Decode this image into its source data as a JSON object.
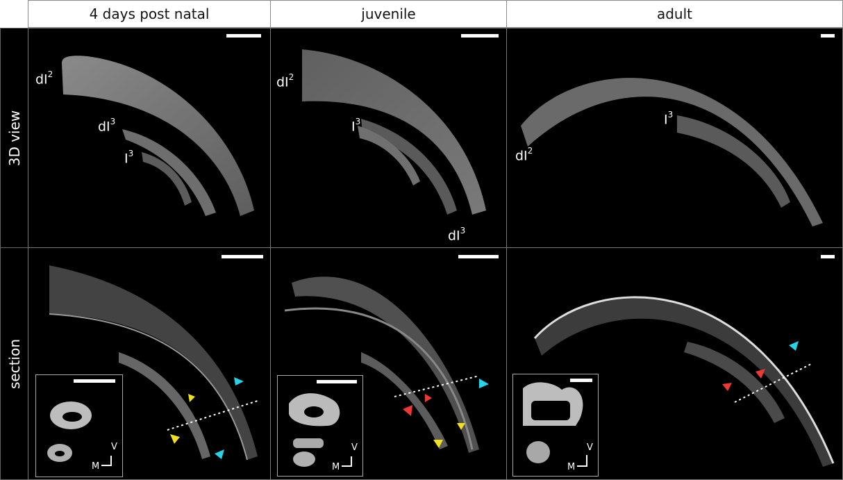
{
  "columns": [
    "4 days post natal",
    "juvenile",
    "adult"
  ],
  "rows": [
    "3D view",
    "section"
  ],
  "labels": {
    "p1": [
      "dI",
      "2",
      "dI",
      "3",
      "I",
      "3"
    ],
    "p2": [
      "dI",
      "2",
      "I",
      "3",
      "dI",
      "3"
    ],
    "p3": [
      "I",
      "3",
      "dI",
      "2"
    ]
  },
  "axis": {
    "v": "V",
    "m": "M"
  },
  "arrow_colors": {
    "cyan": "#27d3e6",
    "yellow": "#f0e020",
    "red": "#ee3838"
  }
}
